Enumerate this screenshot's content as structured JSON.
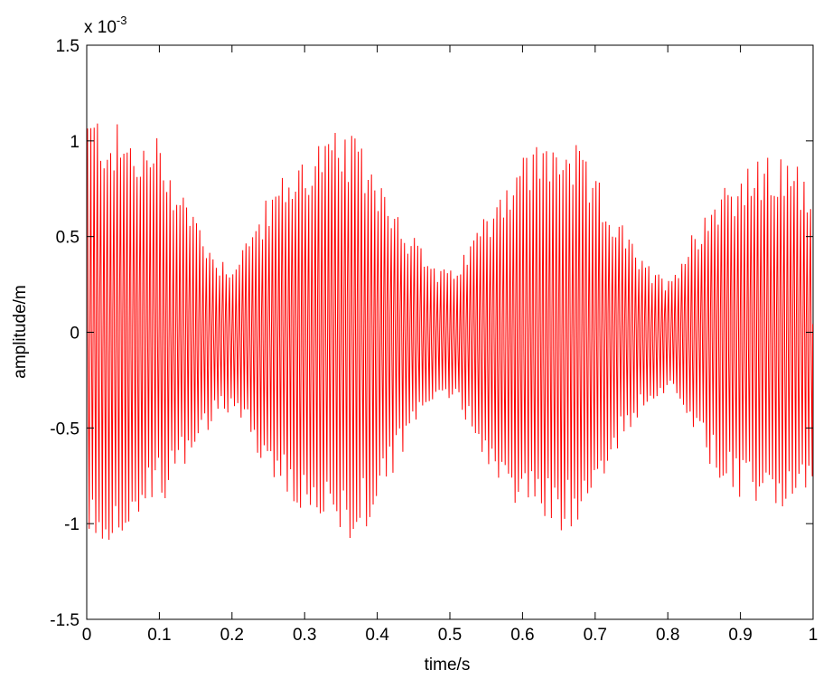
{
  "chart_data": {
    "type": "line",
    "title": "",
    "xlabel": "time/s",
    "ylabel": "amplitude/m",
    "y_multiplier": {
      "base": "x 10",
      "exponent": "-3"
    },
    "xlim": [
      0,
      1
    ],
    "ylim": [
      -1.5,
      1.5
    ],
    "x_ticks": [
      0,
      0.1,
      0.2,
      0.3,
      0.4,
      0.5,
      0.6,
      0.7,
      0.8,
      0.9,
      1
    ],
    "x_tick_labels": [
      "0",
      "0.1",
      "0.2",
      "0.3",
      "0.4",
      "0.5",
      "0.6",
      "0.7",
      "0.8",
      "0.9",
      "1"
    ],
    "y_ticks": [
      -1.5,
      -1,
      -0.5,
      0,
      0.5,
      1,
      1.5
    ],
    "y_tick_labels": [
      "-1.5",
      "-1",
      "-0.5",
      "0",
      "0.5",
      "1",
      "1.5"
    ],
    "grid": false,
    "line_color": "#ff0000",
    "series": [
      {
        "envelope": {
          "x": [
            0,
            0.02,
            0.04,
            0.06,
            0.08,
            0.1,
            0.12,
            0.14,
            0.16,
            0.18,
            0.2,
            0.22,
            0.24,
            0.26,
            0.28,
            0.3,
            0.32,
            0.34,
            0.36,
            0.38,
            0.4,
            0.42,
            0.44,
            0.46,
            0.48,
            0.5,
            0.52,
            0.54,
            0.56,
            0.58,
            0.6,
            0.62,
            0.64,
            0.66,
            0.68,
            0.7,
            0.72,
            0.74,
            0.76,
            0.78,
            0.8,
            0.82,
            0.84,
            0.86,
            0.88,
            0.9,
            0.92,
            0.94,
            0.96,
            0.98,
            1
          ],
          "upper": [
            1.18,
            1.15,
            1.1,
            1.05,
            1.0,
            1.05,
            0.85,
            0.72,
            0.55,
            0.4,
            0.38,
            0.5,
            0.65,
            0.78,
            0.88,
            0.95,
            1.03,
            1.05,
            1.05,
            0.98,
            0.88,
            0.72,
            0.58,
            0.45,
            0.35,
            0.32,
            0.42,
            0.58,
            0.72,
            0.85,
            0.95,
            1.0,
            1.02,
            1.05,
            0.95,
            0.82,
            0.7,
            0.55,
            0.42,
            0.32,
            0.3,
            0.42,
            0.58,
            0.72,
            0.82,
            0.85,
            0.9,
            0.92,
            0.92,
            0.88,
            0.85
          ],
          "lower": [
            -1.15,
            -1.12,
            -1.1,
            -1.08,
            -1.0,
            -0.9,
            -0.82,
            -0.7,
            -0.55,
            -0.45,
            -0.42,
            -0.52,
            -0.68,
            -0.82,
            -0.92,
            -0.98,
            -1.05,
            -1.08,
            -1.15,
            -1.05,
            -0.92,
            -0.78,
            -0.62,
            -0.48,
            -0.38,
            -0.35,
            -0.45,
            -0.6,
            -0.75,
            -0.88,
            -0.95,
            -0.98,
            -1.0,
            -1.08,
            -0.98,
            -0.85,
            -0.7,
            -0.55,
            -0.45,
            -0.35,
            -0.32,
            -0.42,
            -0.6,
            -0.72,
            -0.85,
            -0.9,
            -0.92,
            -0.93,
            -0.93,
            -0.92,
            -0.9
          ]
        },
        "carrier_cycles": 220
      }
    ]
  }
}
